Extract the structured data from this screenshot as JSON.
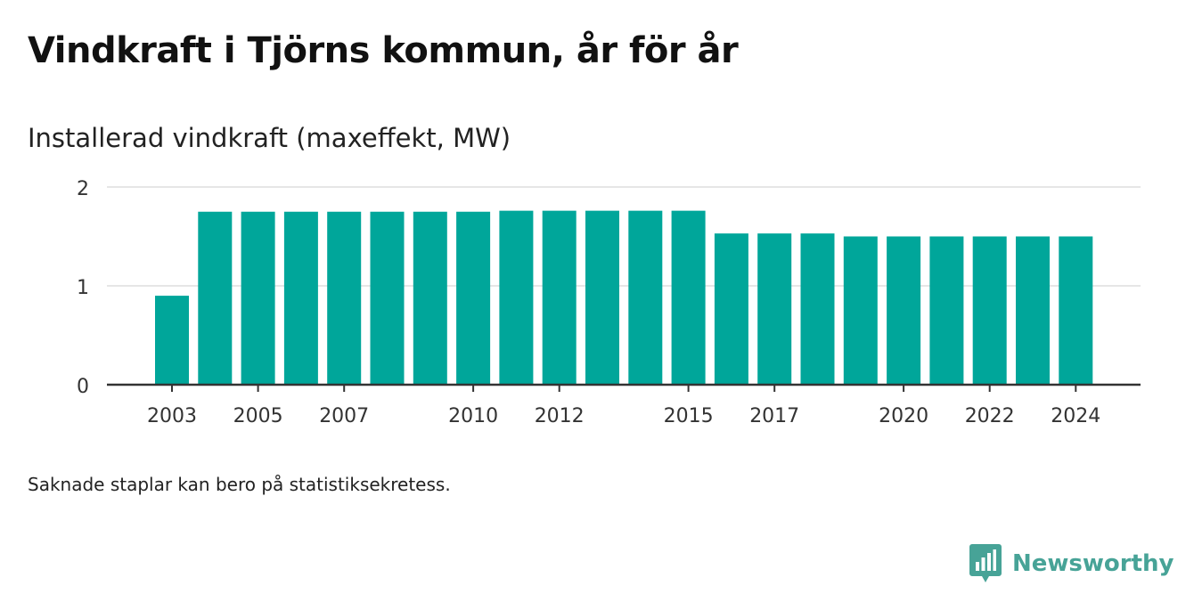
{
  "header": {
    "title": "Vindkraft i Tjörns kommun, år för år",
    "subtitle": "Installerad vindkraft (maxeffekt, MW)"
  },
  "footer": {
    "note": "Saknade staplar kan bero på statistiksekretess.",
    "brand": "Newsworthy"
  },
  "colors": {
    "bar": "#00a69a",
    "brand": "#47a397",
    "grid": "#dddddd",
    "axis": "#333333"
  },
  "chart_data": {
    "type": "bar",
    "categories": [
      "2003",
      "2004",
      "2005",
      "2006",
      "2007",
      "2008",
      "2009",
      "2010",
      "2011",
      "2012",
      "2013",
      "2014",
      "2015",
      "2016",
      "2017",
      "2018",
      "2019",
      "2020",
      "2021",
      "2022",
      "2023",
      "2024"
    ],
    "values": [
      0.9,
      1.75,
      1.75,
      1.75,
      1.75,
      1.75,
      1.75,
      1.75,
      1.76,
      1.76,
      1.76,
      1.76,
      1.76,
      1.53,
      1.53,
      1.53,
      1.5,
      1.5,
      1.5,
      1.5,
      1.5,
      1.5
    ],
    "x_tick_labels": [
      "2003",
      "2005",
      "2007",
      "2010",
      "2012",
      "2015",
      "2017",
      "2020",
      "2022",
      "2024"
    ],
    "y_ticks": [
      0,
      1,
      2
    ],
    "ylim": [
      0,
      2
    ],
    "title": "Vindkraft i Tjörns kommun, år för år",
    "ylabel": "Installerad vindkraft (maxeffekt, MW)",
    "xlabel": "",
    "grid": true,
    "legend": "none"
  }
}
